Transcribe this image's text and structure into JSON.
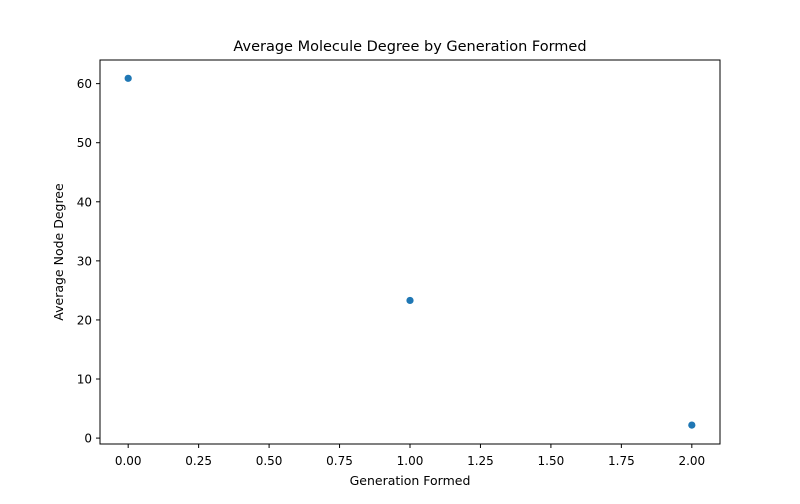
{
  "chart_data": {
    "type": "scatter",
    "title": "Average Molecule Degree by Generation Formed",
    "xlabel": "Generation Formed",
    "ylabel": "Average Node Degree",
    "xlim": [
      -0.1,
      2.1
    ],
    "ylim": [
      -1,
      64
    ],
    "xticks": [
      0.0,
      0.25,
      0.5,
      0.75,
      1.0,
      1.25,
      1.5,
      1.75,
      2.0
    ],
    "xtick_labels": [
      "0.00",
      "0.25",
      "0.50",
      "0.75",
      "1.00",
      "1.25",
      "1.50",
      "1.75",
      "2.00"
    ],
    "yticks": [
      0,
      10,
      20,
      30,
      40,
      50,
      60
    ],
    "ytick_labels": [
      "0",
      "10",
      "20",
      "30",
      "40",
      "50",
      "60"
    ],
    "grid": false,
    "legend": "none",
    "marker_color": "#1f77b4",
    "series": [
      {
        "x": [
          0,
          1,
          2
        ],
        "y": [
          60.9,
          23.3,
          2.2
        ]
      }
    ]
  }
}
